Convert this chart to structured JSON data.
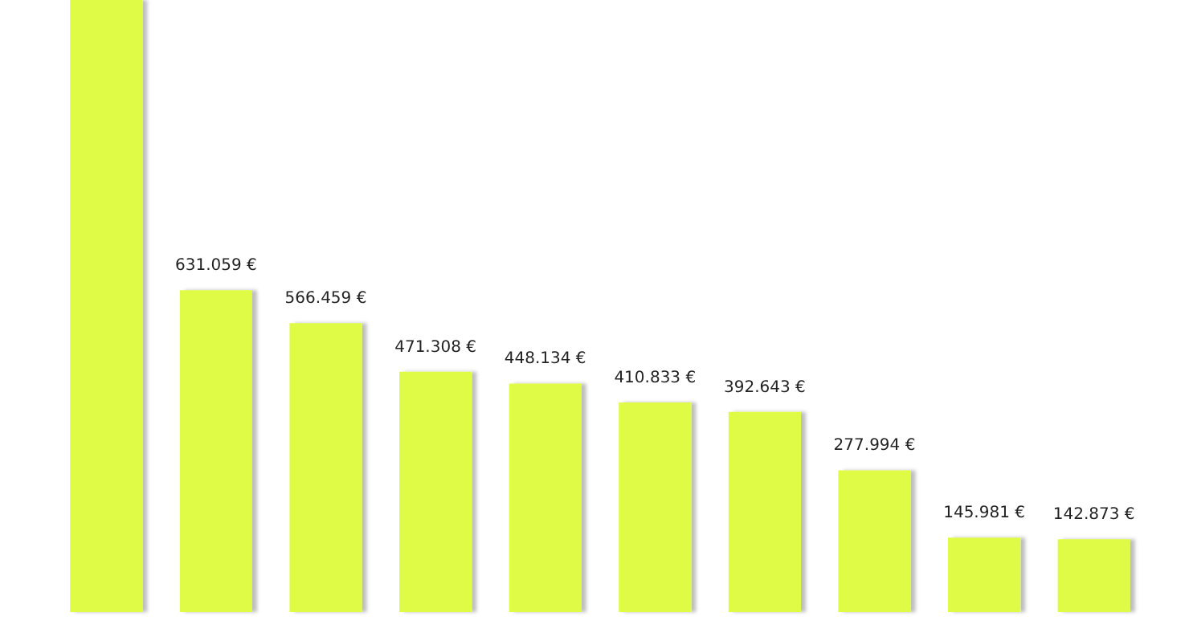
{
  "chart_data": {
    "type": "bar",
    "categories": [
      null,
      null,
      null,
      null,
      null,
      null,
      null,
      null,
      null,
      null
    ],
    "values": [
      1200000,
      631059,
      566459,
      471308,
      448134,
      410833,
      392643,
      277994,
      145981,
      142873
    ],
    "value_labels": [
      null,
      "631.059 €",
      "566.459 €",
      "471.308 €",
      "448.134 €",
      "410.833 €",
      "392.643 €",
      "277.994 €",
      "145.981 €",
      "142.873 €"
    ],
    "color": "#dffb45",
    "ylim": [
      0,
      1200000
    ]
  }
}
